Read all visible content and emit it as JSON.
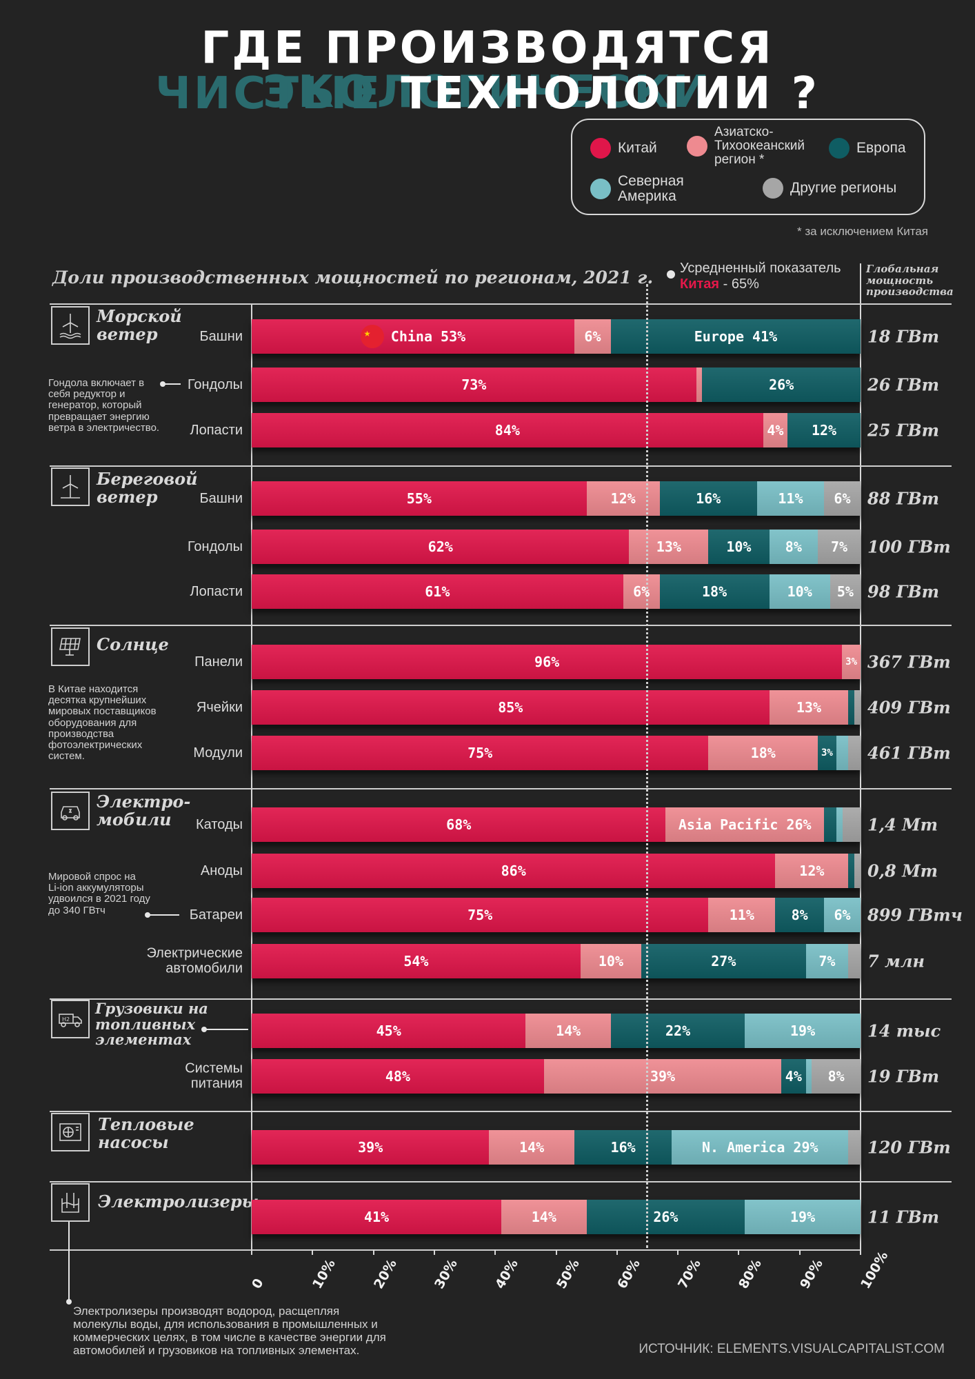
{
  "title": {
    "line1_plain": "ГДЕ ПРОИЗВОДЯТСЯ ",
    "line1_hl": "ЭКОЛОГИЧЕСКИ",
    "line2_hl": "ЧИСТЫЕ",
    "line2_plain": " ТЕХНОЛОГИИ ?"
  },
  "legend": {
    "items": [
      {
        "label": "Китай",
        "color": "#e0164a"
      },
      {
        "label": "Азиатско-\nТихоокеанский\nрегион *",
        "color": "#ee8a90"
      },
      {
        "label": "Европа",
        "color": "#0f5d63"
      },
      {
        "label": "Северная\nАмерика",
        "color": "#79bfc6"
      },
      {
        "label": "Другие регионы",
        "color": "#a6a6a6"
      }
    ],
    "footnote": "* за исключением Китая"
  },
  "subtitle": "Доли производственных мощностей по регионам, 2021 г.",
  "average": {
    "line1": "Усредненный показатель",
    "country": "Китая",
    "value_text": " - 65%",
    "value": 65
  },
  "capacity_header": "Глобальная\nмощность\nпроизводства",
  "sections": [
    {
      "title": "Морской\nветер",
      "icon": "offshore-wind-icon"
    },
    {
      "title": "Береговой\nветер",
      "icon": "onshore-wind-icon"
    },
    {
      "title": "Солнце",
      "icon": "solar-panel-icon"
    },
    {
      "title": "Электро-\nмобили",
      "icon": "electric-car-icon"
    },
    {
      "title": "Грузовики на\nтопливных\nэлементах",
      "icon": "hydrogen-truck-icon"
    },
    {
      "title": "Тепловые\nнасосы",
      "icon": "heat-pump-icon"
    },
    {
      "title": "Электролизеры",
      "icon": "electrolyzer-icon"
    }
  ],
  "notes": {
    "nacelle": "Гондола включает в\nсебя редуктор и\nгенератор, который\nпревращает энергию\nветра в электричество.",
    "solar": "В Китае находится\nдесятка крупнейших\nмировых поставщиков\nоборудования для\nпроизводства\nфотоэлектрических\nсистем.",
    "batteries": "Мировой спрос на\nLi-ion аккумуляторы\nудвоился в 2021 году\n до 340 ГВтч",
    "electrolyzers": "Электролизеры производят водород, расщепляя\nмолекулы воды, для использования в промышленных и\nкоммерческих целях, в том числе в качестве энергии для\nавтомобилей и грузовиков на топливных элементах."
  },
  "source": "ИСТОЧНИК: ELEMENTS.VISUALCAPITALIST.COM",
  "chart_data": {
    "type": "bar",
    "orientation": "horizontal",
    "stacked": true,
    "series_names": [
      "Китай",
      "Азиатско-Тихоокеанский регион *",
      "Европа",
      "Северная Америка",
      "Другие регионы"
    ],
    "xlim": [
      0,
      100
    ],
    "x_ticks": [
      "0",
      "10%",
      "20%",
      "30%",
      "40%",
      "50%",
      "60%",
      "70%",
      "80%",
      "90%",
      "100%"
    ],
    "reference_line": {
      "value": 65,
      "label": "Усредненный показатель Китая - 65%"
    },
    "rows": [
      {
        "section": 0,
        "label": "Башни",
        "capacity": "18 ГВт",
        "values": [
          53,
          6,
          41,
          0,
          0
        ],
        "labels": [
          "China  53%",
          "6%",
          "Europe 41%",
          "",
          ""
        ]
      },
      {
        "section": 0,
        "label": "Гондолы",
        "capacity": "26 ГВт",
        "values": [
          73,
          1,
          26,
          0,
          0
        ],
        "labels": [
          "73%",
          "",
          "26%",
          "",
          ""
        ]
      },
      {
        "section": 0,
        "label": "Лопасти",
        "capacity": "25 ГВт",
        "values": [
          84,
          4,
          12,
          0,
          0
        ],
        "labels": [
          "84%",
          "4%",
          "12%",
          "",
          ""
        ]
      },
      {
        "section": 1,
        "label": "Башни",
        "capacity": "88 ГВт",
        "values": [
          55,
          12,
          16,
          11,
          6
        ],
        "labels": [
          "55%",
          "12%",
          "16%",
          "11%",
          "6%"
        ]
      },
      {
        "section": 1,
        "label": "Гондолы",
        "capacity": "100 ГВт",
        "values": [
          62,
          13,
          10,
          8,
          7
        ],
        "labels": [
          "62%",
          "13%",
          "10%",
          "8%",
          "7%"
        ]
      },
      {
        "section": 1,
        "label": "Лопасти",
        "capacity": "98 ГВт",
        "values": [
          61,
          6,
          18,
          10,
          5
        ],
        "labels": [
          "61%",
          "6%",
          "18%",
          "10%",
          "5%"
        ]
      },
      {
        "section": 2,
        "label": "Панели",
        "capacity": "367 ГВт",
        "values": [
          96,
          3,
          0,
          0,
          0
        ],
        "labels": [
          "96%",
          "3%",
          "",
          "",
          ""
        ]
      },
      {
        "section": 2,
        "label": "Ячейки",
        "capacity": "409 ГВт",
        "values": [
          85,
          13,
          1,
          0,
          1
        ],
        "labels": [
          "85%",
          "13%",
          "",
          "",
          ""
        ]
      },
      {
        "section": 2,
        "label": "Модули",
        "capacity": "461 ГВт",
        "values": [
          75,
          18,
          3,
          2,
          2
        ],
        "labels": [
          "75%",
          "18%",
          "3%",
          "",
          ""
        ]
      },
      {
        "section": 3,
        "label": "Катоды",
        "capacity": "1,4 Мт",
        "values": [
          68,
          26,
          2,
          1,
          3
        ],
        "labels": [
          "68%",
          "Asia Pacific  26%",
          "",
          "",
          ""
        ]
      },
      {
        "section": 3,
        "label": "Аноды",
        "capacity": "0,8 Мт",
        "values": [
          86,
          12,
          1,
          0,
          1
        ],
        "labels": [
          "86%",
          "12%",
          "",
          "",
          ""
        ]
      },
      {
        "section": 3,
        "label": "Батареи",
        "capacity": "899 ГВтч",
        "values": [
          75,
          11,
          8,
          6,
          0
        ],
        "labels": [
          "75%",
          "11%",
          "8%",
          "6%",
          ""
        ]
      },
      {
        "section": 3,
        "label": "Электрические\nавтомобили",
        "capacity": "7 млн",
        "values": [
          54,
          10,
          27,
          7,
          2
        ],
        "labels": [
          "54%",
          "10%",
          "27%",
          "7%",
          ""
        ]
      },
      {
        "section": 4,
        "label": "",
        "capacity": "14 тыс",
        "values": [
          45,
          14,
          22,
          19,
          0
        ],
        "labels": [
          "45%",
          "14%",
          "22%",
          "19%",
          ""
        ]
      },
      {
        "section": 4,
        "label": "Системы\nпитания",
        "capacity": "19 ГВт",
        "values": [
          48,
          39,
          4,
          1,
          8
        ],
        "labels": [
          "48%",
          "39%",
          "4%",
          "",
          "8%"
        ]
      },
      {
        "section": 5,
        "label": "",
        "capacity": "120 ГВт",
        "values": [
          39,
          14,
          16,
          29,
          2
        ],
        "labels": [
          "39%",
          "14%",
          "16%",
          "N. America 29%",
          ""
        ]
      },
      {
        "section": 6,
        "label": "",
        "capacity": "11 ГВт",
        "values": [
          41,
          14,
          26,
          19,
          0
        ],
        "labels": [
          "41%",
          "14%",
          "26%",
          "19%",
          ""
        ]
      }
    ]
  }
}
